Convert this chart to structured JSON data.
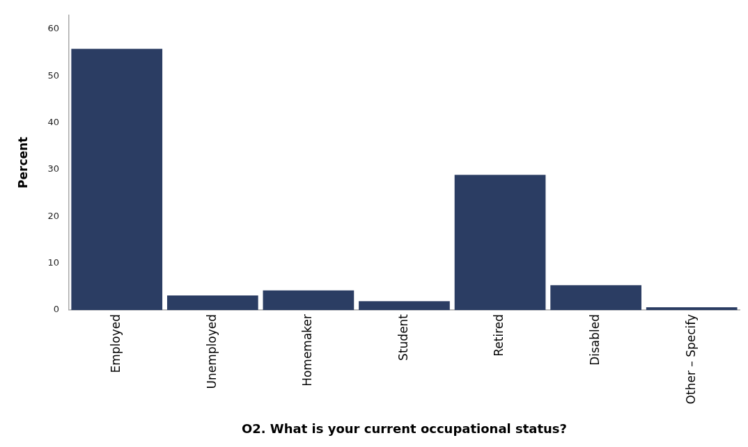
{
  "chart_data": {
    "type": "bar",
    "xlabel": "O2. What is your current occupational status?",
    "ylabel": "Percent",
    "categories": [
      "Employed",
      "Unemployed",
      "Homemaker",
      "Student",
      "Retired",
      "Disabled",
      "Other – Specify"
    ],
    "values": [
      55.8,
      3.1,
      4.2,
      1.9,
      28.9,
      5.3,
      0.6
    ],
    "color": "#2b3d63",
    "ylim": [
      0,
      63
    ],
    "yticks": [
      0,
      10,
      20,
      30,
      40,
      50,
      60
    ],
    "grid": false,
    "legend": false
  }
}
